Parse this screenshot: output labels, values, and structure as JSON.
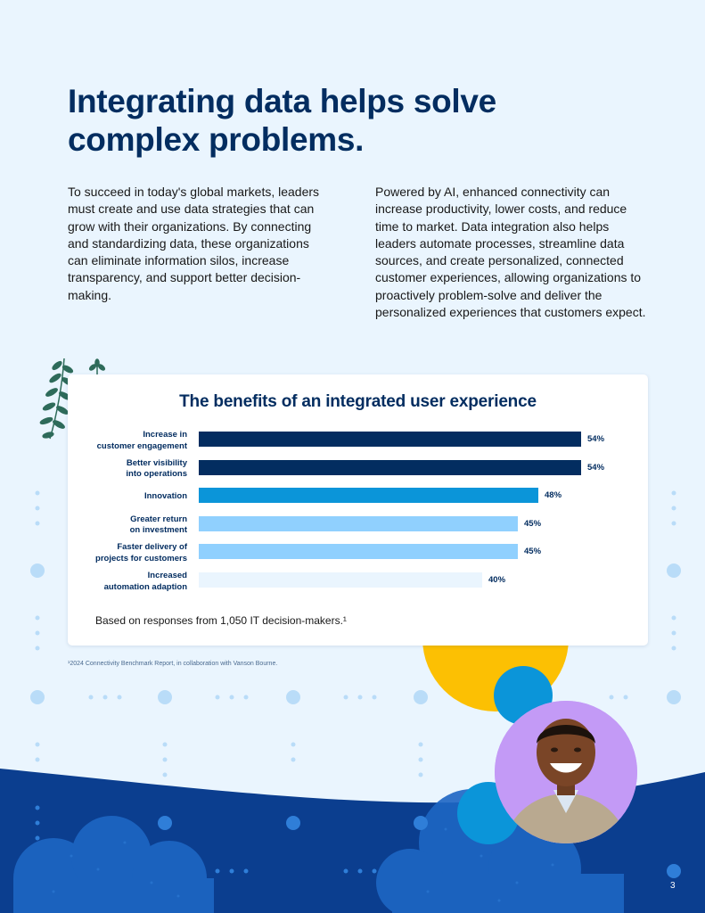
{
  "headline": "Integrating data helps solve complex problems.",
  "paragraph_left": "To succeed in today's global markets, leaders must create and use data strategies that can grow with their organizations. By connecting and standardizing data, these organizations can eliminate information silos, increase transparency, and support better decision-making.",
  "paragraph_right": "Powered by AI, enhanced connectivity can increase productivity, lower costs, and reduce time to market. Data integration also helps leaders automate processes, streamline data sources, and create personalized, connected customer experiences, allowing organizations to proactively problem-solve and deliver the personalized experiences that customers expect.",
  "chart_data": {
    "type": "bar",
    "orientation": "horizontal",
    "title": "The benefits of an integrated user experience",
    "categories": [
      "Increase in\ncustomer engagement",
      "Better visibility\ninto operations",
      "Innovation",
      "Greater return\non investment",
      "Faster delivery of\nprojects for customers",
      "Increased\nautomation adaption"
    ],
    "values": [
      54,
      54,
      48,
      45,
      45,
      40
    ],
    "value_labels": [
      "54%",
      "54%",
      "48%",
      "45%",
      "45%",
      "40%"
    ],
    "bar_colors": [
      "#032d60",
      "#032d60",
      "#0b95d9",
      "#90d0fe",
      "#90d0fe",
      "#eaf5fe"
    ],
    "xlim": [
      0,
      54
    ],
    "xlabel": "",
    "ylabel": "",
    "note": "Based on responses from 1,050 IT decision-makers.¹"
  },
  "footnote": "¹2024 Connectivity Benchmark Report, in collaboration with Vanson Bourne.",
  "page_number": "3",
  "colors": {
    "navy": "#032d60",
    "blue": "#0b95d9",
    "light_blue": "#90d0fe",
    "pale_blue": "#eaf5fe",
    "yellow": "#fcc003",
    "purple": "#c39af6",
    "deep_blue": "#0b3e8f"
  }
}
